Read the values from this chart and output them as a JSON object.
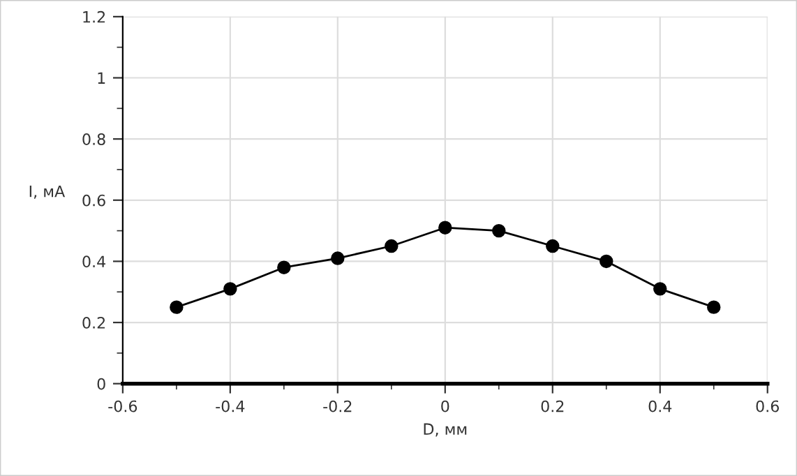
{
  "chart_data": {
    "type": "line",
    "xlabel": "D, мм",
    "ylabel": "I, мA",
    "x": [
      -0.5,
      -0.4,
      -0.3,
      -0.2,
      -0.1,
      0,
      0.1,
      0.2,
      0.3,
      0.4,
      0.5
    ],
    "series": [
      {
        "color": "#000000",
        "values": [
          0.25,
          0.31,
          0.38,
          0.41,
          0.45,
          0.51,
          0.5,
          0.45,
          0.4,
          0.31,
          0.25
        ]
      }
    ],
    "xlim": [
      -0.6,
      0.6
    ],
    "ylim": [
      0,
      1.2
    ],
    "xticks": [
      {
        "value": -0.6,
        "label": "-0.6"
      },
      {
        "value": -0.4,
        "label": "-0.4"
      },
      {
        "value": -0.2,
        "label": "-0.2"
      },
      0,
      0.2,
      0.4,
      0.6
    ],
    "yticks": [
      0,
      0.2,
      0.4,
      0.6,
      0.8,
      1,
      1.2
    ],
    "grid": true,
    "marker": "circle",
    "line_style": "solid"
  }
}
